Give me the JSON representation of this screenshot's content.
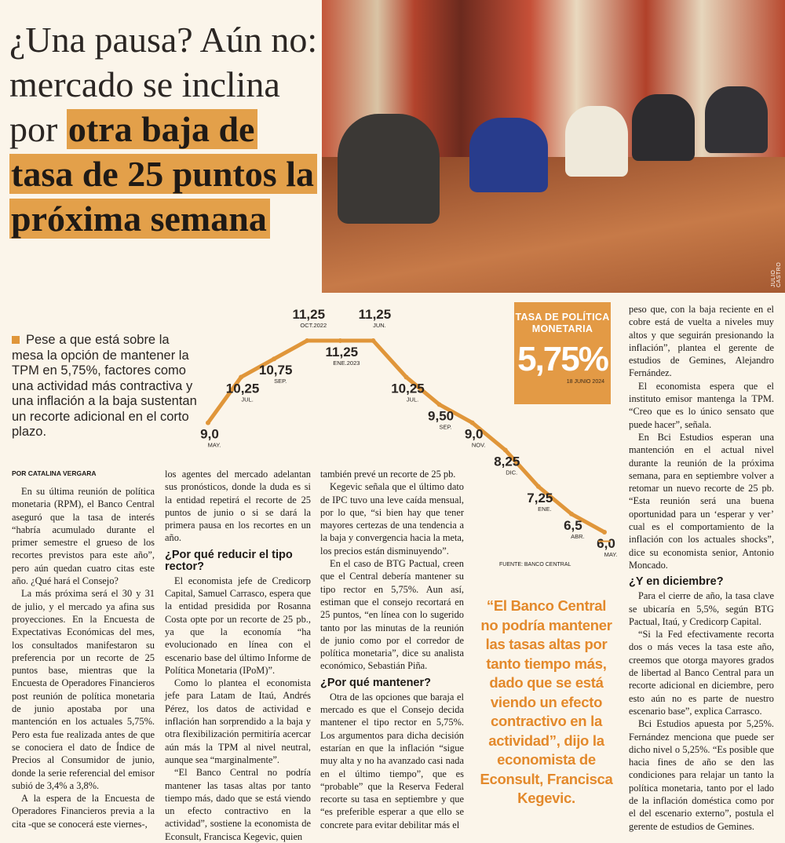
{
  "headline": {
    "plain": "¿Una pausa? Aún no: mercado se inclina por",
    "highlight": "otra baja de tasa de 25 puntos la próxima semana"
  },
  "photo_credit": "JULIO CASTRO",
  "intro": "Pese a que está sobre la mesa la opción de mantener la TPM en 5,75%, factores como una actividad más contractiva y una inflación a la baja sustentan un recorte adicional en el corto plazo.",
  "chart_data": {
    "type": "line",
    "categories": [
      "MAY.",
      "JUL.",
      "SEP.",
      "OCT.2022",
      "ENE.2023",
      "JUN.",
      "JUL.",
      "SEP.",
      "NOV.",
      "DIC.",
      "ENE.",
      "ABR.",
      "MAY."
    ],
    "values": [
      9.0,
      10.25,
      10.75,
      11.25,
      11.25,
      11.25,
      10.25,
      9.5,
      9.0,
      8.25,
      7.25,
      6.5,
      6.0
    ],
    "value_labels": [
      "9,0",
      "10,25",
      "10,75",
      "11,25",
      "11,25",
      "11,25",
      "10,25",
      "9,50",
      "9,0",
      "8,25",
      "7,25",
      "6,5",
      "6,0"
    ],
    "color": "#e0963a",
    "callout": {
      "title": "TASA DE POLÍTICA MONETARIA",
      "value": 5.75,
      "label": "5,75%",
      "date": "18 JUNIO 2024"
    },
    "source": "FUENTE: BANCO CENTRAL"
  },
  "quote": "“El Banco Central no podría mantener las tasas altas por tanto tiempo más, dado que se está viendo un efecto contractivo en la actividad”, dijo la economista de Econsult, Francisca Kegevic.",
  "columns": [
    [
      {
        "byline": "POR CATALINA VERGARA"
      },
      {
        "p": "En su última reunión de política monetaria (RPM), el Banco Central aseguró que la tasa de interés “habría acumulado durante el primer semestre el grueso de los recortes previstos para este año”, pero aún quedan cuatro citas este año. ¿Qué hará el Consejo?"
      },
      {
        "p": "La más próxima será el 30 y 31 de julio, y el mercado ya afina sus proyecciones. En la Encuesta de Expectativas Económicas del mes, los consultados manifestaron su preferencia por un recorte de 25 puntos base, mientras que la Encuesta de Operadores Financieros post reunión de política monetaria de junio apostaba por una mantención en los actuales 5,75%. Pero esta fue realizada antes de que se conociera el dato de Índice de Precios al Consumidor de junio, donde la serie referencial del emisor subió de 3,4% a 3,8%."
      },
      {
        "p": "A la espera de la Encuesta de Operadores Financieros previa a la cita -que se conocerá este viernes-,"
      }
    ],
    [
      {
        "cont": "los agentes del mercado adelantan sus pronósticos, donde la duda es si la entidad repetirá el recorte de 25 puntos de junio o si se dará la primera pausa en los recortes en un año."
      },
      {
        "h": "¿Por qué reducir el tipo rector?"
      },
      {
        "p": "El economista jefe de Credicorp Capital, Samuel Carrasco, espera que la entidad presidida por Rosanna Costa opte por un recorte de 25 pb., ya que la economía “ha evolucionado en línea con el escenario base del último Informe de Política Monetaria (IPoM)”."
      },
      {
        "p": "Como lo plantea el economista jefe para Latam de Itaú, Andrés Pérez, los datos de actividad e inflación han sorprendido a la baja y otra flexibilización permitiría acercar aún más la TPM al nivel neutral, aunque sea “marginalmente”."
      },
      {
        "p": "“El Banco Central no podría mantener las tasas altas por tanto tiempo más, dado que se está viendo un efecto contractivo en la actividad”, sostiene la economista de Econsult, Francisca Kegevic, quien"
      }
    ],
    [
      {
        "cont": "también prevé un recorte de 25 pb."
      },
      {
        "p": "Kegevic señala que el último dato de IPC tuvo una leve caída mensual, por lo que, “si bien hay que tener mayores certezas de una tendencia a la baja y convergencia hacia la meta, los precios están disminuyendo”."
      },
      {
        "p": "En el caso de BTG Pactual, creen que el Central debería mantener su tipo rector en 5,75%. Aun así, estiman que el consejo recortará en 25 puntos, “en línea con lo sugerido tanto por las minutas de la reunión de junio como por el corredor de política monetaria”, dice su analista económico, Sebastián Piña."
      },
      {
        "h": "¿Por qué mantener?"
      },
      {
        "p": "Otra de las opciones que baraja el mercado es que el Consejo decida mantener el tipo rector en 5,75%. Los argumentos para dicha decisión estarían en que la inflación “sigue muy alta y no ha avanzado casi nada en el último tiempo”, que es “probable” que la Reserva Federal recorte su tasa en septiembre y que “es preferible esperar a que ello se concrete para evitar debilitar más el"
      }
    ],
    [
      {
        "cont": "peso que, con la baja reciente en el cobre está de vuelta a niveles muy altos y que seguirán presionando la inflación”, plantea el gerente de estudios de Gemines, Alejandro Fernández."
      },
      {
        "p": "El economista espera que el instituto emisor mantenga la TPM. “Creo que es lo único sensato que puede hacer”, señala."
      },
      {
        "p": "En Bci Estudios esperan una mantención en el actual nivel durante la reunión de la próxima semana, para en septiembre volver a retomar un nuevo recorte de 25 pb. “Esta reunión será una buena oportunidad para un ‘esperar y ver’ cual es el comportamiento de la inflación con los actuales shocks”, dice su economista senior, Antonio Moncado."
      },
      {
        "h": "¿Y en diciembre?"
      },
      {
        "p": "Para el cierre de año, la tasa clave se ubicaría en 5,5%, según BTG Pactual, Itaú, y Credicorp Capital."
      },
      {
        "p": "“Si la Fed efectivamente recorta dos o más veces la tasa este año, creemos que otorga mayores grados de libertad al Banco Central para un recorte adicional en diciembre, pero esto aún no es parte de nuestro escenario base”, explica Carrasco."
      },
      {
        "p": "Bci Estudios apuesta por 5,25%. Fernández menciona que puede ser dicho nivel o 5,25%. “Es posible que hacia fines de año se den las condiciones para relajar un tanto la política monetaria, tanto por el lado de la inflación doméstica como por el del escenario externo”, postula el gerente de estudios de Gemines."
      }
    ]
  ]
}
